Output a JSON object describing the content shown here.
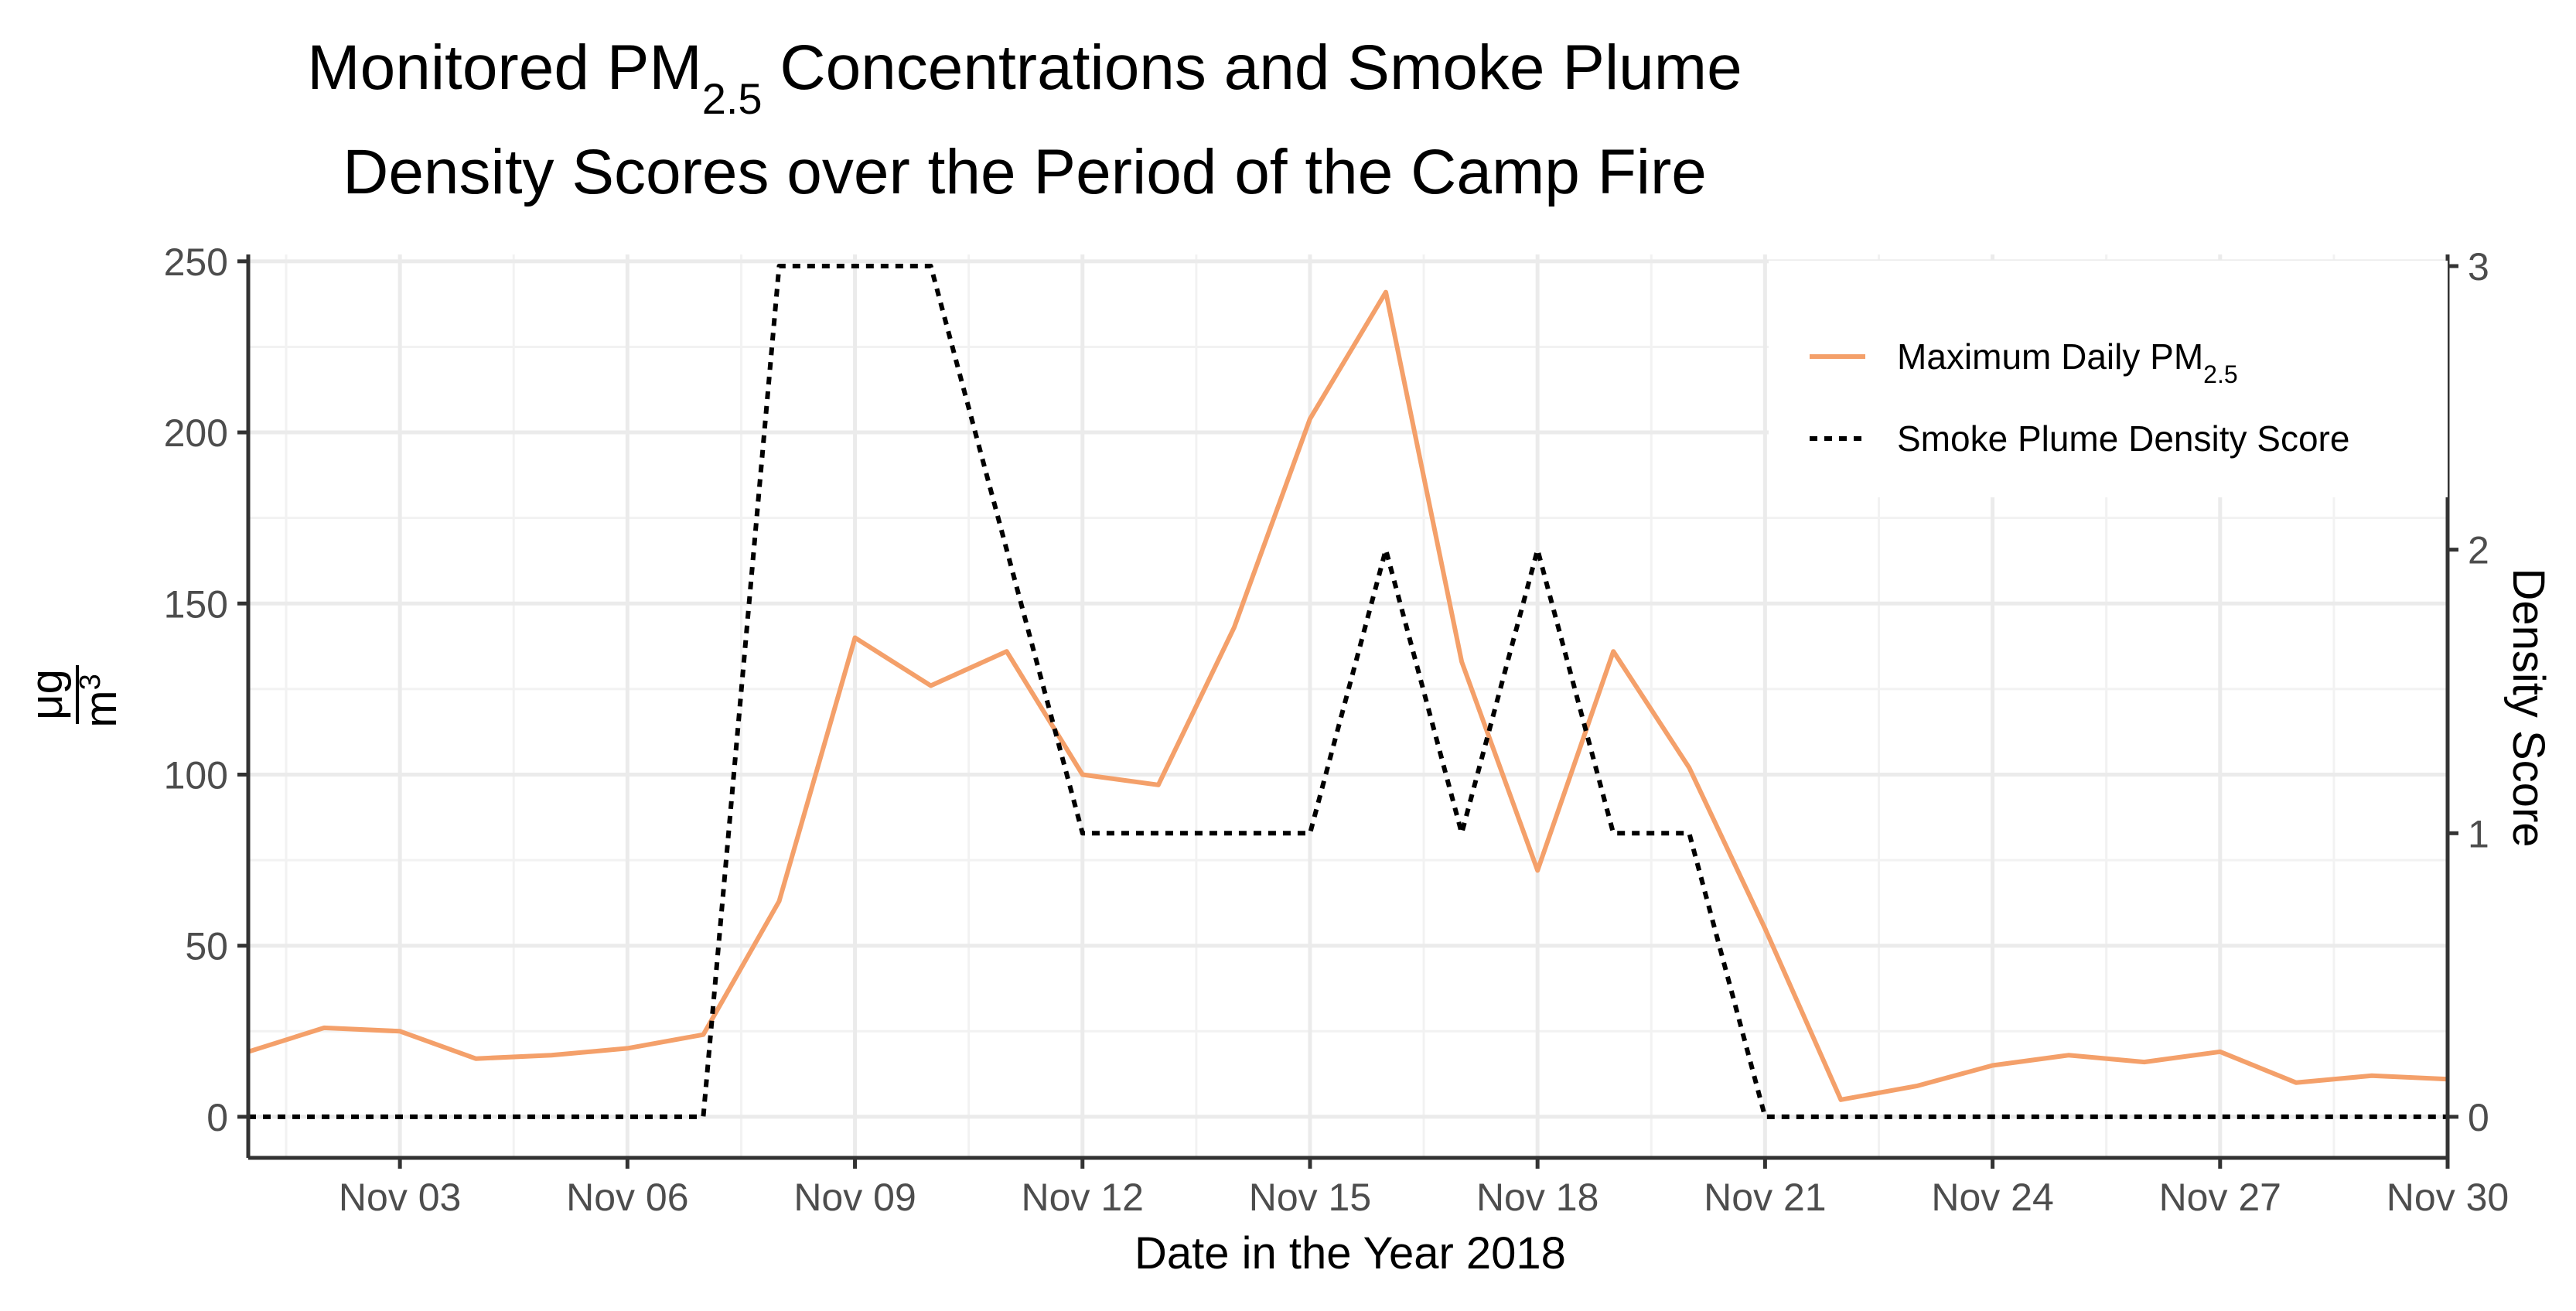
{
  "chart_data": {
    "type": "line",
    "title_line1_prefix": "Monitored PM",
    "title_line1_subscript": "2.5",
    "title_line1_suffix": " Concentrations and Smoke Plume",
    "title_line2": "Density Scores over the Period of the Camp Fire",
    "xlabel": "Date in the Year 2018",
    "ylabel_numerator": "μg",
    "ylabel_denominator": "m",
    "ylabel_denominator_superscript": "3",
    "y2label": "Density Score",
    "xlim": [
      "2018-11-01",
      "2018-11-30"
    ],
    "ylim": [
      -12,
      252
    ],
    "y2lim": [
      -0.1448,
      3.041
    ],
    "x_ticks": [
      {
        "date": "2018-11-03",
        "label": "Nov 03"
      },
      {
        "date": "2018-11-06",
        "label": "Nov 06"
      },
      {
        "date": "2018-11-09",
        "label": "Nov 09"
      },
      {
        "date": "2018-11-12",
        "label": "Nov 12"
      },
      {
        "date": "2018-11-15",
        "label": "Nov 15"
      },
      {
        "date": "2018-11-18",
        "label": "Nov 18"
      },
      {
        "date": "2018-11-21",
        "label": "Nov 21"
      },
      {
        "date": "2018-11-24",
        "label": "Nov 24"
      },
      {
        "date": "2018-11-27",
        "label": "Nov 27"
      },
      {
        "date": "2018-11-30",
        "label": "Nov 30"
      }
    ],
    "y_ticks": [
      0,
      50,
      100,
      150,
      200,
      250
    ],
    "y2_ticks": [
      0,
      1,
      2,
      3
    ],
    "grid": true,
    "legend_position": "top-right",
    "series": [
      {
        "name_prefix": "Maximum Daily PM",
        "name_subscript": "2.5",
        "axis": "left",
        "color": "#f4a06a",
        "style": "solid",
        "x": [
          "2018-11-01",
          "2018-11-02",
          "2018-11-03",
          "2018-11-04",
          "2018-11-05",
          "2018-11-06",
          "2018-11-07",
          "2018-11-08",
          "2018-11-09",
          "2018-11-10",
          "2018-11-11",
          "2018-11-12",
          "2018-11-13",
          "2018-11-14",
          "2018-11-15",
          "2018-11-16",
          "2018-11-17",
          "2018-11-18",
          "2018-11-19",
          "2018-11-20",
          "2018-11-21",
          "2018-11-22",
          "2018-11-23",
          "2018-11-24",
          "2018-11-25",
          "2018-11-26",
          "2018-11-27",
          "2018-11-28",
          "2018-11-29",
          "2018-11-30"
        ],
        "values": [
          19,
          26,
          25,
          17,
          18,
          20,
          24,
          63,
          140,
          126,
          136,
          100,
          97,
          143,
          204,
          241,
          133,
          72,
          136,
          102,
          55,
          5,
          9,
          15,
          18,
          16,
          19,
          10,
          12,
          11
        ]
      },
      {
        "name": "Smoke Plume Density Score",
        "axis": "right",
        "color": "#000000",
        "style": "dashed",
        "x": [
          "2018-11-01",
          "2018-11-02",
          "2018-11-03",
          "2018-11-04",
          "2018-11-05",
          "2018-11-06",
          "2018-11-07",
          "2018-11-08",
          "2018-11-09",
          "2018-11-10",
          "2018-11-11",
          "2018-11-12",
          "2018-11-13",
          "2018-11-14",
          "2018-11-15",
          "2018-11-16",
          "2018-11-17",
          "2018-11-18",
          "2018-11-19",
          "2018-11-20",
          "2018-11-21",
          "2018-11-22",
          "2018-11-23",
          "2018-11-24",
          "2018-11-25",
          "2018-11-26",
          "2018-11-27",
          "2018-11-28",
          "2018-11-29",
          "2018-11-30"
        ],
        "values": [
          0,
          0,
          0,
          0,
          0,
          0,
          0,
          3,
          3,
          3,
          2,
          1,
          1,
          1,
          1,
          2,
          1,
          2,
          1,
          1,
          0,
          0,
          0,
          0,
          0,
          0,
          0,
          0,
          0,
          0
        ]
      }
    ]
  }
}
